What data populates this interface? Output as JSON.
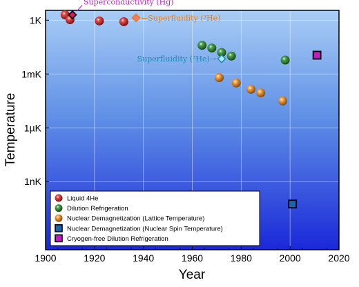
{
  "chart_data": {
    "type": "scatter",
    "xlabel": "Year",
    "ylabel": "Temperature",
    "xlim": [
      1900,
      2020
    ],
    "ylim_log10_kelvin": [
      -12.8,
      0.55
    ],
    "x_ticks": [
      1900,
      1920,
      1940,
      1960,
      1980,
      2000,
      2020
    ],
    "y_ticks": [
      {
        "label": "1K",
        "log10": 0
      },
      {
        "label": "1mK",
        "log10": -3
      },
      {
        "label": "1µK",
        "log10": -6
      },
      {
        "label": "1nK",
        "log10": -9
      }
    ],
    "grid": true,
    "legend_position": "bottom-left",
    "series": [
      {
        "name": "Liquid 4He",
        "marker": "sphere",
        "color": "#e01818",
        "points": [
          {
            "x": 1908,
            "log10_t": 0.3
          },
          {
            "x": 1910,
            "log10_t": 0.03
          },
          {
            "x": 1922,
            "log10_t": -0.04
          },
          {
            "x": 1932,
            "log10_t": -0.08
          }
        ]
      },
      {
        "name": "Dilution Refrigeration",
        "marker": "sphere",
        "color": "#1f8a1f",
        "points": [
          {
            "x": 1964,
            "log10_t": -1.4
          },
          {
            "x": 1968,
            "log10_t": -1.55
          },
          {
            "x": 1972,
            "log10_t": -1.8
          },
          {
            "x": 1976,
            "log10_t": -2.0
          },
          {
            "x": 1998,
            "log10_t": -2.22
          }
        ]
      },
      {
        "name": "Nuclear Demagnetization (Lattice Temperature)",
        "marker": "sphere",
        "color": "#f58a10",
        "points": [
          {
            "x": 1971,
            "log10_t": -3.2
          },
          {
            "x": 1978,
            "log10_t": -3.5
          },
          {
            "x": 1984,
            "log10_t": -3.85
          },
          {
            "x": 1988,
            "log10_t": -4.05
          },
          {
            "x": 1997,
            "log10_t": -4.5
          }
        ]
      },
      {
        "name": "Nuclear Demagnetization (Nuclear Spin Temperature)",
        "marker": "square",
        "color": "#1565b0",
        "points": [
          {
            "x": 2001,
            "log10_t": -10.25
          }
        ]
      },
      {
        "name": "Cryogen-free Dilution Refrigeration",
        "marker": "square",
        "color": "#c21cc2",
        "points": [
          {
            "x": 2011,
            "log10_t": -1.95
          }
        ]
      }
    ],
    "annotations": [
      {
        "text": "Superconductivity (Hg)",
        "x": 1911,
        "log10_t": 0.3,
        "color": "#c21cc2",
        "marker_color": "#d81860",
        "side": "right"
      },
      {
        "text": "←Superfluidity (³He)",
        "x": 1937,
        "log10_t": 0.13,
        "color": "#e87d1a",
        "marker_color": "#f27a72",
        "side": "right"
      },
      {
        "text": "Superfluidity (³He)→",
        "x": 1972,
        "log10_t": -2.15,
        "color": "#1b8ab5",
        "marker_color": "#b0e8f2",
        "side": "left"
      }
    ]
  }
}
